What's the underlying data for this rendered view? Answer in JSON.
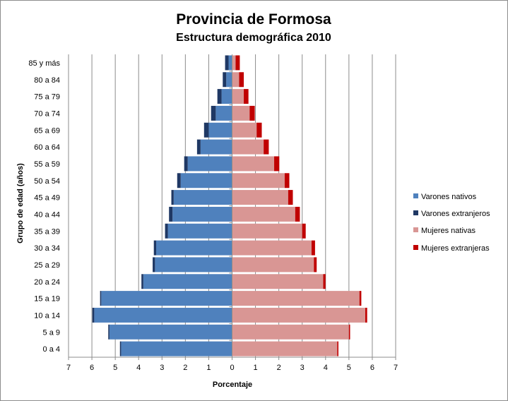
{
  "chart_data": {
    "type": "bar",
    "orientation": "horizontal-stacked-pyramid",
    "title": "Provincia de Formosa",
    "subtitle": "Estructura demográfica 2010",
    "xlabel": "Porcentaje",
    "ylabel": "Grupo de edad (años)",
    "xlim": [
      -7,
      7
    ],
    "xticks": [
      "7",
      "6",
      "5",
      "4",
      "3",
      "2",
      "1",
      "0",
      "1",
      "2",
      "3",
      "4",
      "5",
      "6",
      "7"
    ],
    "grid": "vertical",
    "legend_position": "right",
    "categories": [
      "0 a 4",
      "5 a 9",
      "10 a 14",
      "15 a 19",
      "20 a 24",
      "25 a 29",
      "30 a 34",
      "35 a 39",
      "40 a 44",
      "45 a 49",
      "50 a 54",
      "55 a 59",
      "60 a 64",
      "65 a 69",
      "70 a 74",
      "75 a 79",
      "80 a 84",
      "85 y más"
    ],
    "series": [
      {
        "name": "Varones nativos",
        "side": "left",
        "color": "#4f81bd",
        "values": [
          4.75,
          5.25,
          5.9,
          5.6,
          3.8,
          3.3,
          3.25,
          2.75,
          2.55,
          2.5,
          2.2,
          1.9,
          1.35,
          1.0,
          0.7,
          0.45,
          0.25,
          0.15
        ]
      },
      {
        "name": "Varones extranjeros",
        "side": "left",
        "color": "#1f3864",
        "values": [
          0.05,
          0.05,
          0.08,
          0.05,
          0.08,
          0.1,
          0.1,
          0.12,
          0.15,
          0.1,
          0.15,
          0.15,
          0.15,
          0.2,
          0.2,
          0.18,
          0.15,
          0.15
        ]
      },
      {
        "name": "Mujeres nativas",
        "side": "right",
        "color": "#d99694",
        "values": [
          4.5,
          5.0,
          5.7,
          5.45,
          3.9,
          3.5,
          3.4,
          3.0,
          2.7,
          2.4,
          2.25,
          1.8,
          1.35,
          1.05,
          0.75,
          0.5,
          0.3,
          0.15
        ]
      },
      {
        "name": "Mujeres extranjeras",
        "side": "right",
        "color": "#c00000",
        "values": [
          0.05,
          0.05,
          0.08,
          0.08,
          0.1,
          0.12,
          0.15,
          0.15,
          0.2,
          0.2,
          0.2,
          0.22,
          0.22,
          0.22,
          0.22,
          0.2,
          0.2,
          0.18
        ]
      }
    ]
  }
}
